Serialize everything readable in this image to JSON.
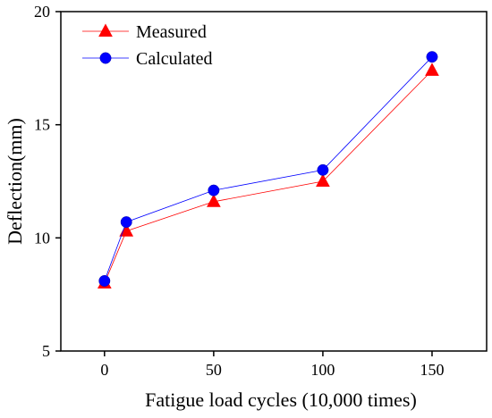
{
  "chart_data": {
    "type": "line",
    "xlabel": "Fatigue load cycles (10,000 times)",
    "ylabel": "Deflection(mm)",
    "xlim": [
      -20,
      175
    ],
    "ylim": [
      5,
      20
    ],
    "x_ticks": [
      0,
      50,
      100,
      150
    ],
    "y_ticks": [
      5,
      10,
      15,
      20
    ],
    "grid": false,
    "legend_position": "top-left",
    "x": [
      0,
      10,
      50,
      100,
      150
    ],
    "series": [
      {
        "name": "Measured",
        "values": [
          8.0,
          10.3,
          11.6,
          12.5,
          17.4
        ],
        "color": "#ff0000",
        "marker": "triangle"
      },
      {
        "name": "Calculated",
        "values": [
          8.1,
          10.7,
          12.1,
          13.0,
          18.0
        ],
        "color": "#0000ff",
        "marker": "circle"
      }
    ]
  }
}
